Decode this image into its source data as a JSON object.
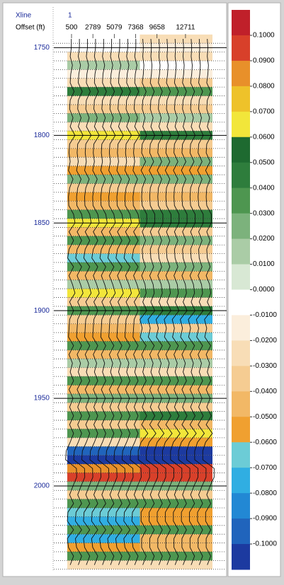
{
  "chart_data": {
    "type": "seismic",
    "xline_label": "Xline",
    "xline": 1,
    "xlabel": "Offset (ft)",
    "xlim": [
      45,
      15600
    ],
    "xticks": [
      500,
      2789,
      5079,
      7368,
      9658,
      12711
    ],
    "ylim": [
      1745,
      2048
    ],
    "yticks": [
      1750,
      1800,
      1850,
      1900,
      1950,
      2000
    ],
    "depths": [
      1745,
      1750,
      1755,
      1760,
      1765,
      1770,
      1775,
      1780,
      1785,
      1790,
      1795,
      1800,
      1805,
      1810,
      1815,
      1820,
      1825,
      1830,
      1835,
      1840,
      1845,
      1850,
      1855,
      1860,
      1865,
      1870,
      1875,
      1880,
      1885,
      1890,
      1895,
      1900,
      1905,
      1910,
      1915,
      1920,
      1925,
      1930,
      1935,
      1940,
      1945,
      1950,
      1955,
      1960,
      1965,
      1970,
      1975,
      1980,
      1985,
      1990,
      1995,
      2000,
      2005,
      2010,
      2015,
      2020,
      2025,
      2030,
      2035,
      2040,
      2045
    ],
    "columns": [
      {
        "values": [
          0.0,
          0.0,
          -0.02,
          0.02,
          -0.01,
          -0.02,
          0.05,
          -0.02,
          -0.03,
          0.03,
          -0.02,
          0.065,
          -0.03,
          -0.04,
          -0.02,
          -0.05,
          0.03,
          -0.03,
          -0.05,
          -0.045,
          0.04,
          0.065,
          -0.04,
          0.04,
          -0.04,
          -0.065,
          0.04,
          -0.04,
          0.02,
          0.065,
          -0.03,
          0.04,
          -0.03,
          -0.04,
          -0.05,
          0.04,
          -0.04,
          0.02,
          -0.02,
          0.04,
          -0.04,
          0.03,
          -0.03,
          0.04,
          -0.03,
          0.04,
          -0.02,
          -0.09,
          -0.1,
          0.09,
          0.095,
          0.03,
          -0.03,
          0.04,
          -0.06,
          -0.07,
          0.04,
          -0.07,
          -0.05,
          0.04,
          -0.02
        ]
      },
      {
        "values": [
          -0.02,
          -0.01,
          -0.02,
          0.0,
          -0.01,
          -0.03,
          0.04,
          -0.02,
          -0.03,
          0.02,
          -0.02,
          0.05,
          -0.03,
          -0.04,
          0.03,
          -0.05,
          0.03,
          -0.03,
          -0.04,
          -0.03,
          0.05,
          0.05,
          -0.03,
          0.03,
          -0.03,
          -0.02,
          0.03,
          -0.04,
          0.02,
          0.04,
          -0.02,
          0.05,
          -0.07,
          -0.03,
          -0.065,
          0.04,
          -0.04,
          0.02,
          -0.02,
          0.04,
          -0.04,
          0.03,
          -0.03,
          0.05,
          -0.04,
          0.07,
          -0.05,
          -0.1,
          -0.1,
          0.1,
          0.1,
          0.03,
          -0.03,
          0.04,
          -0.05,
          -0.05,
          0.04,
          -0.04,
          -0.04,
          0.04,
          -0.02
        ]
      }
    ],
    "colorbar": {
      "lim": [
        -0.11,
        0.11
      ],
      "ticks": [
        {
          "value": 0.1,
          "label": "0.1000"
        },
        {
          "value": 0.09,
          "label": "0.0900"
        },
        {
          "value": 0.08,
          "label": "0.0800"
        },
        {
          "value": 0.07,
          "label": "0.0700"
        },
        {
          "value": 0.06,
          "label": "0.0600"
        },
        {
          "value": 0.05,
          "label": "0.0500"
        },
        {
          "value": 0.04,
          "label": "0.0400"
        },
        {
          "value": 0.03,
          "label": "0.0300"
        },
        {
          "value": 0.02,
          "label": "0.0200"
        },
        {
          "value": 0.01,
          "label": "0.0100"
        },
        {
          "value": 0,
          "label": "0.0000"
        },
        {
          "value": -0.01,
          "label": "-0.0100"
        },
        {
          "value": -0.02,
          "label": "-0.0200"
        },
        {
          "value": -0.03,
          "label": "-0.0300"
        },
        {
          "value": -0.04,
          "label": "-0.0400"
        },
        {
          "value": -0.05,
          "label": "-0.0500"
        },
        {
          "value": -0.06,
          "label": "-0.0600"
        },
        {
          "value": -0.07,
          "label": "-0.0700"
        },
        {
          "value": -0.08,
          "label": "-0.0800"
        },
        {
          "value": -0.09,
          "label": "-0.0900"
        },
        {
          "value": -0.1,
          "label": "-0.1000"
        }
      ],
      "colors": [
        "#c0202a",
        "#d8402a",
        "#e8902a",
        "#eec22a",
        "#f2e63a",
        "#1e6a30",
        "#2e7d3c",
        "#4e9650",
        "#7cb27c",
        "#aacca6",
        "#d8e8d4",
        "#ffffff",
        "#fbeedc",
        "#f8ddb6",
        "#f5cc92",
        "#f2b866",
        "#f0a030",
        "#6cccd6",
        "#30aee2",
        "#2288d4",
        "#2064bc",
        "#1c3aa0"
      ]
    }
  }
}
